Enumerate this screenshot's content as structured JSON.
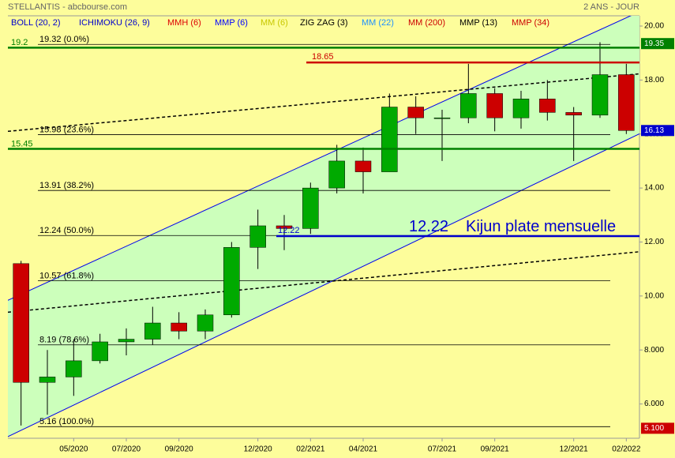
{
  "chart_data": {
    "type": "candlestick",
    "title": "STELLANTIS - abcbourse.com",
    "subtitle": "2 ANS - JOUR",
    "indicators": [
      {
        "name": "BOLL (20, 2)",
        "color": "#0000cc"
      },
      {
        "name": "ICHIMOKU (26, 9)",
        "color": "#0000cc"
      },
      {
        "name": "MMH (6)",
        "color": "#dd0000"
      },
      {
        "name": "MMP (6)",
        "color": "#0000ff"
      },
      {
        "name": "MM (6)",
        "color": "#c8c800"
      },
      {
        "name": "ZIG ZAG (3)",
        "color": "#000000"
      },
      {
        "name": "MM (22)",
        "color": "#1e90ff"
      },
      {
        "name": "MM (200)",
        "color": "#cc0000"
      },
      {
        "name": "MMP (13)",
        "color": "#000000"
      },
      {
        "name": "MMP (34)",
        "color": "#cc0000"
      }
    ],
    "categories": [
      null,
      null,
      "05/2020",
      null,
      "07/2020",
      null,
      "09/2020",
      null,
      null,
      "12/2020",
      null,
      "02/2021",
      null,
      "04/2021",
      null,
      null,
      "07/2021",
      null,
      "09/2021",
      null,
      null,
      "12/2021",
      null,
      "02/2022"
    ],
    "open": [
      11.2,
      6.8,
      7.0,
      7.6,
      8.3,
      8.4,
      9.0,
      8.7,
      9.3,
      11.8,
      12.6,
      12.5,
      14.0,
      15.0,
      14.6,
      17.0,
      16.6,
      16.6,
      17.5,
      16.6,
      17.3,
      16.8,
      16.7,
      18.2
    ],
    "high": [
      11.3,
      8.0,
      8.4,
      8.6,
      8.8,
      9.6,
      9.4,
      9.5,
      12.0,
      13.2,
      13.0,
      14.2,
      15.6,
      15.5,
      17.5,
      17.4,
      16.9,
      18.6,
      17.7,
      17.6,
      18.0,
      17.0,
      19.4,
      18.6
    ],
    "low": [
      5.2,
      5.6,
      6.3,
      7.5,
      7.8,
      8.2,
      8.4,
      8.4,
      9.2,
      11.0,
      11.7,
      12.3,
      13.8,
      13.8,
      14.6,
      16.0,
      15.0,
      16.4,
      16.1,
      16.2,
      16.5,
      15.0,
      16.6,
      16.0
    ],
    "close": [
      6.8,
      7.0,
      7.6,
      8.3,
      8.4,
      9.0,
      8.7,
      9.3,
      11.8,
      12.6,
      12.5,
      14.0,
      15.0,
      14.6,
      17.0,
      16.6,
      16.6,
      17.5,
      16.6,
      17.3,
      16.8,
      16.7,
      18.2,
      16.13
    ],
    "up_color": "#00aa00",
    "down_color": "#cc0000",
    "ylim": [
      4.73,
      20.38
    ],
    "yticks": [
      {
        "value": 6,
        "label": "6.000"
      },
      {
        "value": 8,
        "label": "8.000"
      },
      {
        "value": 10,
        "label": "10.00"
      },
      {
        "value": 12,
        "label": "12.00"
      },
      {
        "value": 14,
        "label": "14.00"
      },
      {
        "value": 16,
        "label": "16.00"
      },
      {
        "value": 18,
        "label": "18.00"
      },
      {
        "value": 20,
        "label": "20.00"
      }
    ],
    "fibonacci": [
      {
        "value": 19.32,
        "label": "19.32  (0.0%)"
      },
      {
        "value": 15.98,
        "label": "15.98  (23.6%)"
      },
      {
        "value": 13.91,
        "label": "13.91  (38.2%)"
      },
      {
        "value": 12.24,
        "label": "12.24  (50.0%)"
      },
      {
        "value": 10.57,
        "label": "10.57  (61.8%)"
      },
      {
        "value": 8.19,
        "label": "8.19  (78.6%)"
      },
      {
        "value": 5.16,
        "label": "5.16  (100.0%)"
      }
    ],
    "support_lines": [
      {
        "value": 19.2,
        "color": "#008000"
      },
      {
        "value": 15.45,
        "color": "#008000"
      }
    ],
    "resistance": {
      "value": 18.65,
      "color": "#cc0000"
    },
    "kijun": {
      "value": 12.22,
      "color": "#0000cc",
      "annotation": "Kijun plate mensuelle"
    },
    "channel": {
      "color": "#0000ee",
      "fill": "#ccffbb",
      "upper": [
        9.84,
        20.53
      ],
      "lower": [
        4.79,
        16.01
      ]
    },
    "dotted_lines": [
      [
        16.1,
        18.23
      ],
      [
        9.4,
        11.64
      ]
    ],
    "markers": [
      {
        "value": 19.35,
        "color": "#008000"
      },
      {
        "value": 16.13,
        "color": "#0000cc"
      },
      {
        "value": 5.1,
        "label": "5.100",
        "color": "#cc0000"
      }
    ]
  }
}
